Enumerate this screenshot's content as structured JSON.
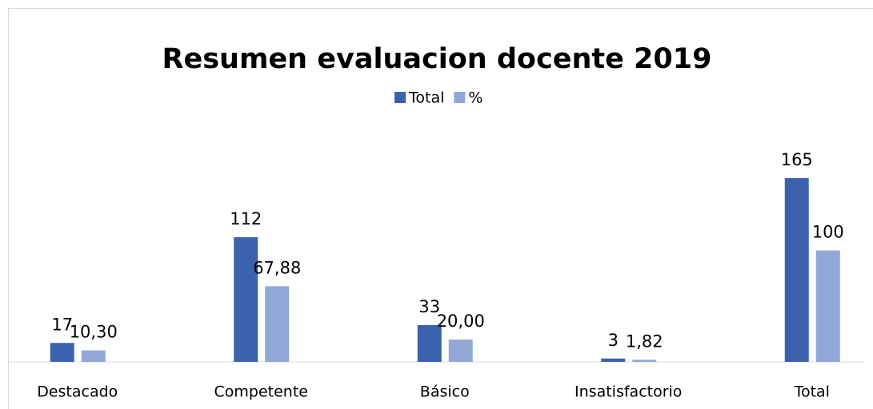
{
  "chart_data": {
    "type": "bar",
    "title": "Resumen evaluacion docente 2019",
    "categories": [
      "Destacado",
      "Competente",
      "Básico",
      "Insatisfactorio",
      "Total"
    ],
    "series": [
      {
        "name": "Total",
        "color": "#3b63ad",
        "values": [
          17,
          112,
          33,
          3,
          165
        ]
      },
      {
        "name": "%",
        "color": "#91a8d6",
        "values": [
          10.3,
          67.88,
          20.0,
          1.82,
          100
        ],
        "value_labels": [
          "10,30",
          "67,88",
          "20,00",
          "1,82",
          "100"
        ]
      }
    ],
    "ylim": [
      0,
      180
    ],
    "legend": "top"
  }
}
